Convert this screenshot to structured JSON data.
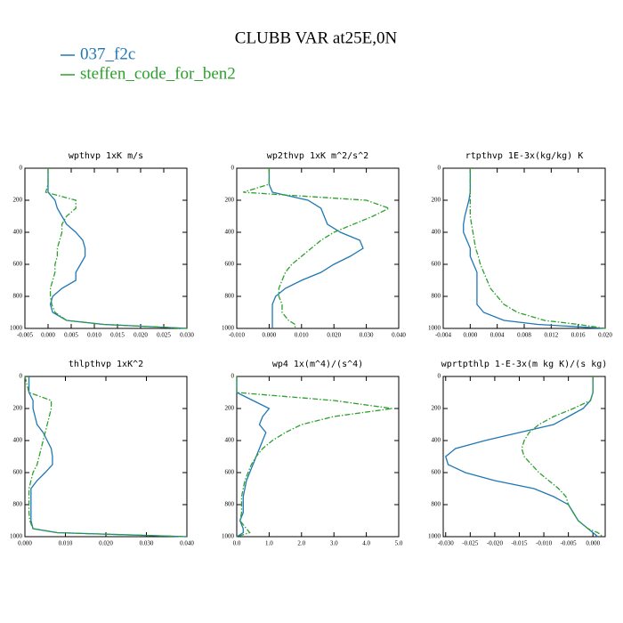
{
  "title": "CLUBB VAR at25E,0N",
  "chart_data": [
    {
      "type": "line",
      "title": "wpthvp  1xK m/s",
      "y": [
        0,
        100,
        150,
        200,
        250,
        300,
        350,
        400,
        450,
        500,
        550,
        600,
        650,
        700,
        750,
        800,
        850,
        900,
        950,
        975,
        1000
      ],
      "series": [
        {
          "name": "037_f2c",
          "color": "#1f77b4",
          "linestyle": "solid",
          "values": [
            0,
            0,
            0,
            0.0015,
            0.002,
            0.003,
            0.004,
            0.006,
            0.0075,
            0.008,
            0.008,
            0.007,
            0.006,
            0.006,
            0.003,
            0.001,
            0.0005,
            0.001,
            0.004,
            0.012,
            0.03
          ]
        },
        {
          "name": "steffen_code_for_ben2",
          "color": "#2ca02c",
          "linestyle": "dashdot",
          "values": [
            0,
            0,
            -0.0005,
            0.006,
            0.006,
            0.004,
            0.003,
            0.003,
            0.0025,
            0.002,
            0.002,
            0.0015,
            0.0015,
            0.001,
            0.0005,
            0.0005,
            0.0008,
            0.0015,
            0.004,
            0.012,
            0.03
          ]
        }
      ],
      "xlim": [
        -0.005,
        0.03
      ],
      "ylim": [
        1000,
        0
      ],
      "xticks": [
        {
          "value": -0.005,
          "label": "-0.005"
        },
        {
          "value": 0,
          "label": "0.000"
        },
        {
          "value": 0.005,
          "label": "0.005"
        },
        {
          "value": 0.01,
          "label": "0.010"
        },
        {
          "value": 0.015,
          "label": "0.015"
        },
        {
          "value": 0.02,
          "label": "0.020"
        },
        {
          "value": 0.025,
          "label": "0.025"
        },
        {
          "value": 0.03,
          "label": "0.030"
        }
      ],
      "yticks": [
        0,
        200,
        400,
        600,
        800,
        1000
      ]
    },
    {
      "type": "line",
      "title": "wp2thvp  1xK m^2/s^2",
      "y": [
        0,
        100,
        150,
        200,
        250,
        300,
        350,
        400,
        450,
        500,
        550,
        600,
        650,
        700,
        750,
        800,
        850,
        900,
        950,
        975,
        1000
      ],
      "series": [
        {
          "name": "037_f2c",
          "color": "#1f77b4",
          "linestyle": "solid",
          "values": [
            0,
            0,
            0.001,
            0.012,
            0.016,
            0.017,
            0.018,
            0.022,
            0.028,
            0.029,
            0.025,
            0.02,
            0.016,
            0.01,
            0.005,
            0.002,
            0.001,
            0.001,
            0.001,
            0.001,
            0.001
          ]
        },
        {
          "name": "steffen_code_for_ben2",
          "color": "#2ca02c",
          "linestyle": "dashdot",
          "values": [
            0,
            0,
            -0.008,
            0.03,
            0.037,
            0.032,
            0.026,
            0.02,
            0.016,
            0.013,
            0.01,
            0.007,
            0.005,
            0.004,
            0.003,
            0.003,
            0.004,
            0.004,
            0.006,
            0.008,
            0.008
          ]
        }
      ],
      "xlim": [
        -0.01,
        0.04
      ],
      "ylim": [
        1000,
        0
      ],
      "xticks": [
        {
          "value": -0.01,
          "label": "-0.010"
        },
        {
          "value": 0,
          "label": "0.000"
        },
        {
          "value": 0.01,
          "label": "0.010"
        },
        {
          "value": 0.02,
          "label": "0.020"
        },
        {
          "value": 0.03,
          "label": "0.030"
        },
        {
          "value": 0.04,
          "label": "0.040"
        }
      ],
      "yticks": [
        0,
        200,
        400,
        600,
        800,
        1000
      ]
    },
    {
      "type": "line",
      "title": "rtpthvp  1E-3x(kg/kg) K",
      "y": [
        0,
        100,
        150,
        200,
        250,
        300,
        350,
        400,
        450,
        500,
        550,
        600,
        650,
        700,
        750,
        800,
        850,
        900,
        950,
        975,
        1000
      ],
      "series": [
        {
          "name": "037_f2c",
          "color": "#1f77b4",
          "linestyle": "solid",
          "values": [
            0,
            0,
            0,
            -0.0002,
            -0.0005,
            -0.0008,
            -0.001,
            -0.001,
            -0.0005,
            0,
            0,
            0.0005,
            0.001,
            0.001,
            0.001,
            0.001,
            0.001,
            0.002,
            0.005,
            0.01,
            0.02
          ]
        },
        {
          "name": "steffen_code_for_ben2",
          "color": "#2ca02c",
          "linestyle": "dashdot",
          "values": [
            0,
            0,
            0,
            0,
            0,
            0,
            0.0002,
            0.0004,
            0.0006,
            0.0008,
            0.0012,
            0.0015,
            0.002,
            0.0025,
            0.003,
            0.004,
            0.005,
            0.007,
            0.011,
            0.016,
            0.02
          ]
        }
      ],
      "xlim": [
        -0.004,
        0.02
      ],
      "ylim": [
        1000,
        0
      ],
      "xticks": [
        {
          "value": -0.004,
          "label": "-0.004"
        },
        {
          "value": 0,
          "label": "0.000"
        },
        {
          "value": 0.004,
          "label": "0.004"
        },
        {
          "value": 0.008,
          "label": "0.008"
        },
        {
          "value": 0.012,
          "label": "0.012"
        },
        {
          "value": 0.016,
          "label": "0.016"
        },
        {
          "value": 0.02,
          "label": "0.020"
        }
      ],
      "yticks": [
        0,
        200,
        400,
        600,
        800,
        1000
      ]
    },
    {
      "type": "line",
      "title": "thlpthvp  1xK^2",
      "y": [
        0,
        100,
        150,
        200,
        250,
        300,
        350,
        400,
        450,
        500,
        550,
        600,
        650,
        700,
        750,
        800,
        850,
        900,
        950,
        975,
        1000
      ],
      "series": [
        {
          "name": "037_f2c",
          "color": "#1f77b4",
          "linestyle": "solid",
          "values": [
            0.001,
            0.001,
            0.002,
            0.002,
            0.0025,
            0.003,
            0.0045,
            0.0055,
            0.0065,
            0.0068,
            0.0068,
            0.005,
            0.003,
            0.0015,
            0.0015,
            0.0015,
            0.0015,
            0.0015,
            0.002,
            0.008,
            0.04
          ]
        },
        {
          "name": "steffen_code_for_ben2",
          "color": "#2ca02c",
          "linestyle": "dashdot",
          "values": [
            0,
            0.001,
            0.0065,
            0.0065,
            0.006,
            0.0055,
            0.005,
            0.0045,
            0.004,
            0.0035,
            0.003,
            0.002,
            0.0015,
            0.001,
            0.001,
            0.001,
            0.001,
            0.0012,
            0.002,
            0.008,
            0.04
          ]
        }
      ],
      "xlim": [
        0,
        0.04
      ],
      "ylim": [
        1000,
        0
      ],
      "xticks": [
        {
          "value": 0,
          "label": "0.000"
        },
        {
          "value": 0.01,
          "label": "0.010"
        },
        {
          "value": 0.02,
          "label": "0.020"
        },
        {
          "value": 0.03,
          "label": "0.030"
        },
        {
          "value": 0.04,
          "label": "0.040"
        }
      ],
      "yticks": [
        0,
        200,
        400,
        600,
        800,
        1000
      ]
    },
    {
      "type": "line",
      "title": "wp4  1x(m^4)/(s^4)",
      "y": [
        0,
        100,
        150,
        200,
        250,
        300,
        350,
        400,
        450,
        500,
        550,
        600,
        650,
        700,
        750,
        800,
        850,
        900,
        950,
        975,
        1000
      ],
      "series": [
        {
          "name": "037_f2c",
          "color": "#1f77b4",
          "linestyle": "solid",
          "values": [
            0,
            0,
            0.5,
            1.0,
            0.8,
            0.7,
            0.9,
            0.8,
            0.7,
            0.6,
            0.5,
            0.4,
            0.3,
            0.25,
            0.2,
            0.2,
            0.2,
            0.1,
            0.2,
            0.2,
            0
          ]
        },
        {
          "name": "steffen_code_for_ben2",
          "color": "#2ca02c",
          "linestyle": "dashdot",
          "values": [
            0,
            0,
            3.0,
            4.8,
            3.0,
            2.0,
            1.5,
            1.1,
            0.8,
            0.6,
            0.45,
            0.35,
            0.25,
            0.2,
            0.15,
            0.15,
            0.15,
            0.1,
            0.3,
            0.4,
            0
          ]
        }
      ],
      "xlim": [
        0,
        5
      ],
      "ylim": [
        1000,
        0
      ],
      "xticks": [
        {
          "value": 0,
          "label": "0.0"
        },
        {
          "value": 1,
          "label": "1.0"
        },
        {
          "value": 2,
          "label": "2.0"
        },
        {
          "value": 3,
          "label": "3.0"
        },
        {
          "value": 4,
          "label": "4.0"
        },
        {
          "value": 5,
          "label": "5.0"
        }
      ],
      "yticks": [
        0,
        200,
        400,
        600,
        800,
        1000
      ]
    },
    {
      "type": "line",
      "title": "wprtpthlp  1-E-3x(m kg K)/(s kg)",
      "y": [
        0,
        100,
        150,
        200,
        250,
        300,
        350,
        400,
        450,
        500,
        550,
        600,
        650,
        700,
        750,
        800,
        850,
        900,
        950,
        975,
        1000
      ],
      "series": [
        {
          "name": "037_f2c",
          "color": "#1f77b4",
          "linestyle": "solid",
          "values": [
            0,
            0,
            -0.0005,
            -0.002,
            -0.005,
            -0.008,
            -0.015,
            -0.022,
            -0.028,
            -0.03,
            -0.0295,
            -0.026,
            -0.02,
            -0.012,
            -0.008,
            -0.005,
            -0.004,
            -0.003,
            -0.001,
            0,
            0.001
          ]
        },
        {
          "name": "steffen_code_for_ben2",
          "color": "#2ca02c",
          "linestyle": "dashdot",
          "values": [
            0,
            0,
            -0.0005,
            -0.004,
            -0.008,
            -0.011,
            -0.013,
            -0.014,
            -0.0145,
            -0.014,
            -0.0125,
            -0.011,
            -0.009,
            -0.007,
            -0.0055,
            -0.005,
            -0.004,
            -0.003,
            -0.001,
            0.001,
            0.002
          ]
        }
      ],
      "xlim": [
        -0.0305,
        0.0025
      ],
      "ylim": [
        1000,
        0
      ],
      "xticks": [
        {
          "value": -0.03,
          "label": "-0.030"
        },
        {
          "value": -0.025,
          "label": "-0.025"
        },
        {
          "value": -0.02,
          "label": "-0.020"
        },
        {
          "value": -0.015,
          "label": "-0.015"
        },
        {
          "value": -0.01,
          "label": "-0.010"
        },
        {
          "value": -0.005,
          "label": "-0.005"
        },
        {
          "value": 0,
          "label": "0.000"
        }
      ],
      "yticks": [
        0,
        200,
        400,
        600,
        800,
        1000
      ]
    }
  ]
}
